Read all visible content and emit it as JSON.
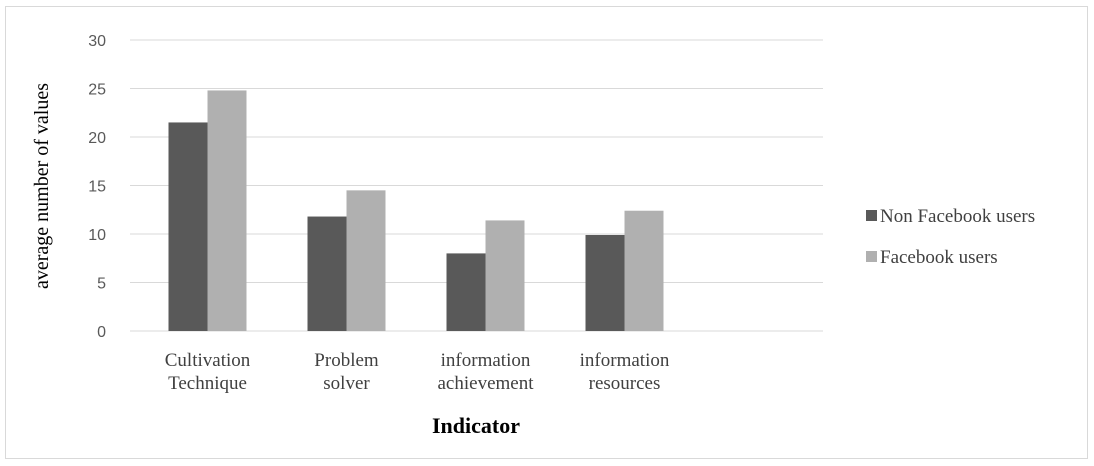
{
  "chart_data": {
    "type": "bar",
    "categories": [
      [
        "Cultivation",
        "Technique"
      ],
      [
        "Problem",
        "solver"
      ],
      [
        "information",
        "achievement"
      ],
      [
        "information",
        "resources"
      ]
    ],
    "series": [
      {
        "name": "Non Facebook users",
        "values": [
          21.5,
          11.8,
          8.0,
          9.9
        ],
        "color": "#595959"
      },
      {
        "name": "Facebook users",
        "values": [
          24.8,
          14.5,
          11.4,
          12.4
        ],
        "color": "#b0b0b0"
      }
    ],
    "xlabel": "Indicator",
    "ylabel": "average number of values",
    "ylim": [
      0,
      30
    ],
    "yticks": [
      "0",
      "5",
      "10",
      "15",
      "20",
      "25",
      "30"
    ],
    "ytick_values": [
      0,
      5,
      10,
      15,
      20,
      25,
      30
    ],
    "grid": true,
    "legend_position": "right",
    "colors": {
      "gridline": "#d9d9d9",
      "border": "#d9d9d9"
    }
  }
}
